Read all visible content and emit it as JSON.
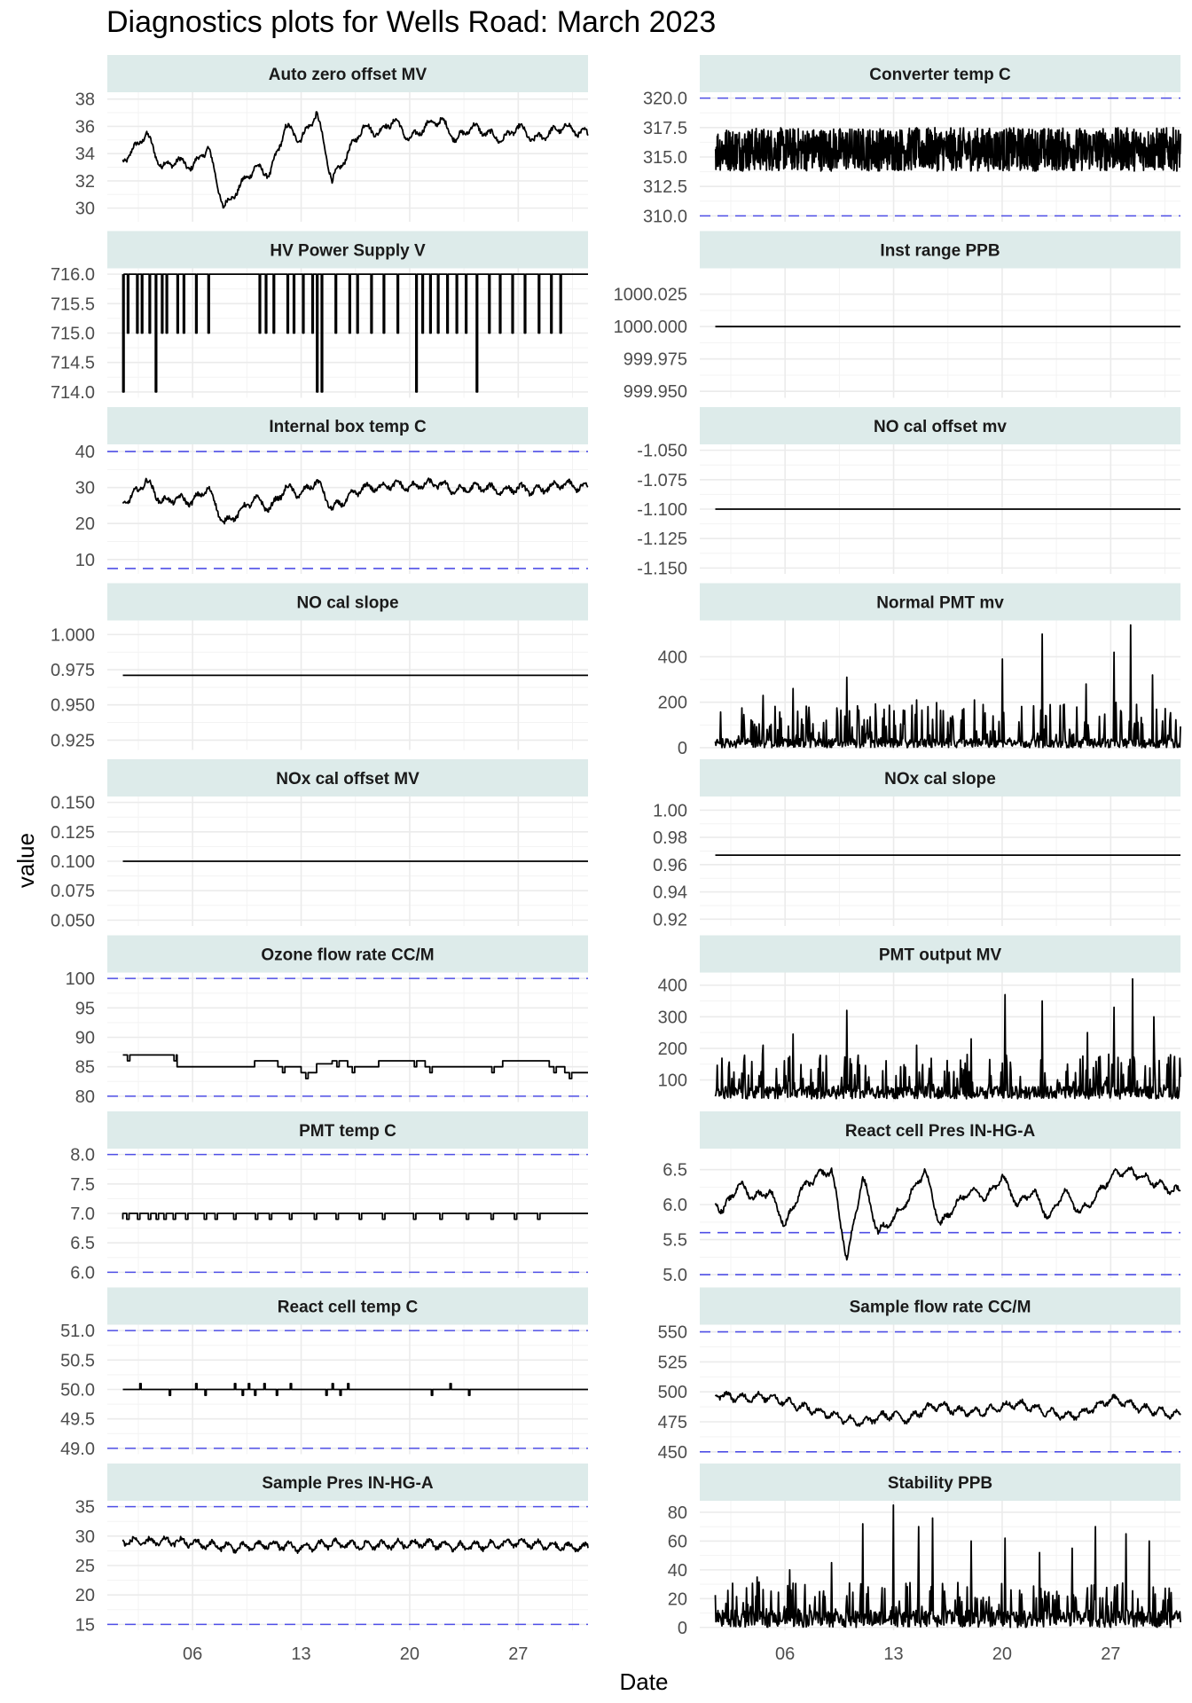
{
  "title": "Diagnostics plots for Wells Road: March 2023",
  "xlabel": "Date",
  "ylabel": "value",
  "x_tick_labels": [
    "06",
    "13",
    "20",
    "27"
  ],
  "colors": {
    "strip_bg": "#ddebea",
    "line": "#000000",
    "limit": "#4f4fe6",
    "grid": "#ebebeb"
  },
  "chart_data": [
    {
      "type": "line",
      "title": "Auto zero offset MV",
      "ylim": [
        29,
        38.5
      ],
      "yticks": [
        30,
        32,
        34,
        36,
        38
      ],
      "ytick_labels": [
        "30",
        "32",
        "34",
        "36",
        "38"
      ],
      "limits": [],
      "pattern": "wave",
      "x": [
        1,
        2,
        3,
        4,
        5,
        6,
        7,
        8,
        9,
        10,
        11,
        12,
        13,
        14,
        15,
        16,
        17,
        18,
        19,
        20,
        21,
        22,
        23,
        24,
        25,
        26,
        27,
        28,
        29,
        30,
        31
      ],
      "values": [
        33,
        34,
        35.5,
        33,
        33.5,
        33,
        34.5,
        30,
        31.5,
        33,
        32.5,
        36,
        35,
        37,
        32,
        34,
        36,
        35.5,
        36.5,
        35,
        36,
        36.5,
        35,
        36,
        35.5,
        35,
        36,
        35,
        35.5,
        36,
        35.5
      ]
    },
    {
      "type": "line",
      "title": "Converter temp C",
      "ylim": [
        309.5,
        320.5
      ],
      "yticks": [
        310,
        312.5,
        315,
        317.5,
        320
      ],
      "ytick_labels": [
        "310.0",
        "312.5",
        "315.0",
        "317.5",
        "320.0"
      ],
      "limits": [
        310,
        320
      ],
      "pattern": "band",
      "band": [
        313.8,
        317.5
      ]
    },
    {
      "type": "line",
      "title": "HV Power Supply V",
      "ylim": [
        713.9,
        716.1
      ],
      "yticks": [
        714,
        714.5,
        715,
        715.5,
        716
      ],
      "ytick_labels": [
        "714.0",
        "714.5",
        "715.0",
        "715.5",
        "716.0"
      ],
      "limits": [],
      "pattern": "step",
      "base": 716,
      "drops": [
        [
          1.5,
          714
        ],
        [
          1.8,
          715
        ],
        [
          2.4,
          715
        ],
        [
          2.7,
          715
        ],
        [
          3.2,
          715
        ],
        [
          3.6,
          714
        ],
        [
          4.0,
          715
        ],
        [
          4.3,
          715
        ],
        [
          5.0,
          715
        ],
        [
          5.4,
          715
        ],
        [
          6.2,
          715
        ],
        [
          7.0,
          715
        ],
        [
          10.3,
          715
        ],
        [
          10.7,
          715
        ],
        [
          11.2,
          715
        ],
        [
          12.1,
          715
        ],
        [
          12.5,
          715
        ],
        [
          13.1,
          715
        ],
        [
          13.7,
          715
        ],
        [
          14.0,
          714
        ],
        [
          14.3,
          714
        ],
        [
          15.2,
          715
        ],
        [
          16.1,
          715
        ],
        [
          16.6,
          715
        ],
        [
          17.5,
          715
        ],
        [
          18.3,
          715
        ],
        [
          19.2,
          715
        ],
        [
          20.4,
          714
        ],
        [
          20.8,
          715
        ],
        [
          21.3,
          715
        ],
        [
          21.8,
          715
        ],
        [
          22.4,
          715
        ],
        [
          23.0,
          715
        ],
        [
          23.6,
          715
        ],
        [
          24.3,
          714
        ],
        [
          25.1,
          715
        ],
        [
          25.8,
          715
        ],
        [
          26.6,
          715
        ],
        [
          27.4,
          715
        ],
        [
          28.3,
          715
        ],
        [
          29.1,
          715
        ],
        [
          29.7,
          715
        ]
      ]
    },
    {
      "type": "line",
      "title": "Inst range PPB",
      "ylim": [
        999.945,
        1000.045
      ],
      "yticks": [
        999.95,
        999.975,
        1000,
        1000.025
      ],
      "ytick_labels": [
        "999.950",
        "999.975",
        "1000.000",
        "1000.025"
      ],
      "limits": [],
      "pattern": "flat",
      "value": 1000
    },
    {
      "type": "line",
      "title": "Internal box temp C",
      "ylim": [
        6,
        42
      ],
      "yticks": [
        10,
        20,
        30,
        40
      ],
      "ytick_labels": [
        "10",
        "20",
        "30",
        "40"
      ],
      "limits": [
        7.5,
        40
      ],
      "pattern": "wave",
      "x": [
        1,
        2,
        3,
        4,
        5,
        6,
        7,
        8,
        9,
        10,
        11,
        12,
        13,
        14,
        15,
        16,
        17,
        18,
        19,
        20,
        21,
        22,
        23,
        24,
        25,
        26,
        27,
        28,
        29,
        30,
        31
      ],
      "values": [
        25,
        27,
        32,
        26,
        27,
        26,
        30,
        20,
        23,
        27,
        24,
        30,
        28,
        32,
        24,
        27,
        30,
        30,
        31,
        30,
        31,
        31,
        29,
        30,
        30,
        29,
        30,
        29,
        30,
        31,
        30
      ]
    },
    {
      "type": "line",
      "title": "NO cal offset mv",
      "ylim": [
        -1.155,
        -1.045
      ],
      "yticks": [
        -1.15,
        -1.125,
        -1.1,
        -1.075,
        -1.05
      ],
      "ytick_labels": [
        "-1.150",
        "-1.125",
        "-1.100",
        "-1.075",
        "-1.050"
      ],
      "limits": [],
      "pattern": "flat",
      "value": -1.1
    },
    {
      "type": "line",
      "title": "NO cal slope",
      "ylim": [
        0.918,
        1.01
      ],
      "yticks": [
        0.925,
        0.95,
        0.975,
        1
      ],
      "ytick_labels": [
        "0.925",
        "0.950",
        "0.975",
        "1.000"
      ],
      "limits": [],
      "pattern": "flat",
      "value": 0.971
    },
    {
      "type": "line",
      "title": "Normal PMT mv",
      "ylim": [
        -10,
        560
      ],
      "yticks": [
        0,
        200,
        400
      ],
      "ytick_labels": [
        "0",
        "200",
        "400"
      ],
      "limits": [],
      "pattern": "spikes",
      "spike_base": [
        0,
        40
      ],
      "peaks": [
        [
          4.6,
          230
        ],
        [
          6.5,
          260
        ],
        [
          10.0,
          310
        ],
        [
          14.5,
          210
        ],
        [
          18.2,
          210
        ],
        [
          20.0,
          390
        ],
        [
          22.6,
          500
        ],
        [
          25.4,
          280
        ],
        [
          27.2,
          420
        ],
        [
          28.3,
          540
        ],
        [
          29.7,
          320
        ]
      ]
    },
    {
      "type": "line",
      "title": "NOx cal offset MV",
      "ylim": [
        0.045,
        0.155
      ],
      "yticks": [
        0.05,
        0.075,
        0.1,
        0.125,
        0.15
      ],
      "ytick_labels": [
        "0.050",
        "0.075",
        "0.100",
        "0.125",
        "0.150"
      ],
      "limits": [],
      "pattern": "flat",
      "value": 0.1
    },
    {
      "type": "line",
      "title": "NOx cal slope",
      "ylim": [
        0.915,
        1.01
      ],
      "yticks": [
        0.92,
        0.94,
        0.96,
        0.98,
        1
      ],
      "ytick_labels": [
        "0.92",
        "0.94",
        "0.96",
        "0.98",
        "1.00"
      ],
      "limits": [],
      "pattern": "flat",
      "value": 0.967
    },
    {
      "type": "line",
      "title": "Ozone flow rate CC/M",
      "ylim": [
        79,
        101
      ],
      "yticks": [
        80,
        85,
        90,
        95,
        100
      ],
      "ytick_labels": [
        "80",
        "85",
        "90",
        "95",
        "100"
      ],
      "limits": [
        80,
        100
      ],
      "pattern": "steps",
      "x": [
        1,
        4.5,
        5,
        9,
        10,
        11.5,
        13,
        14,
        15,
        16,
        18,
        20,
        21,
        25,
        26,
        29,
        30,
        31
      ],
      "values": [
        87,
        87,
        85,
        85,
        86,
        85,
        84,
        85.5,
        86,
        85,
        86,
        86,
        85,
        85,
        86,
        85,
        84,
        84
      ]
    },
    {
      "type": "line",
      "title": "PMT output MV",
      "ylim": [
        30,
        440
      ],
      "yticks": [
        100,
        200,
        300,
        400
      ],
      "ytick_labels": [
        "100",
        "200",
        "300",
        "400"
      ],
      "limits": [],
      "pattern": "spikes",
      "spike_base": [
        40,
        80
      ],
      "peaks": [
        [
          4.6,
          210
        ],
        [
          6.5,
          245
        ],
        [
          10.0,
          320
        ],
        [
          14.5,
          210
        ],
        [
          18.0,
          230
        ],
        [
          20.2,
          370
        ],
        [
          22.6,
          350
        ],
        [
          25.5,
          250
        ],
        [
          27.2,
          330
        ],
        [
          28.4,
          420
        ],
        [
          29.8,
          300
        ]
      ]
    },
    {
      "type": "line",
      "title": "PMT temp C",
      "ylim": [
        5.9,
        8.1
      ],
      "yticks": [
        6,
        6.5,
        7,
        7.5,
        8
      ],
      "ytick_labels": [
        "6.0",
        "6.5",
        "7.0",
        "7.5",
        "8.0"
      ],
      "limits": [
        6,
        8
      ],
      "pattern": "pmt",
      "value": 7.0,
      "dip": 6.9
    },
    {
      "type": "line",
      "title": "React cell Pres IN-HG-A",
      "ylim": [
        4.95,
        6.8
      ],
      "yticks": [
        5,
        5.5,
        6,
        6.5
      ],
      "ytick_labels": [
        "5.0",
        "5.5",
        "6.0",
        "6.5"
      ],
      "limits": [
        5,
        5.6
      ],
      "pattern": "wave",
      "x": [
        1,
        2,
        3,
        4,
        5,
        6,
        7,
        8,
        9,
        10,
        11,
        12,
        13,
        14,
        15,
        16,
        17,
        18,
        19,
        20,
        21,
        22,
        23,
        24,
        25,
        26,
        27,
        28,
        29,
        30,
        31
      ],
      "values": [
        6.2,
        5.9,
        6.3,
        6.1,
        6.2,
        5.7,
        6.2,
        6.4,
        6.5,
        5.2,
        6.4,
        5.6,
        5.8,
        6.1,
        6.5,
        5.7,
        6.0,
        6.2,
        6.1,
        6.4,
        6.0,
        6.2,
        5.8,
        6.2,
        5.9,
        6.1,
        6.4,
        6.5,
        6.4,
        6.3,
        6.2
      ]
    },
    {
      "type": "line",
      "title": "React cell temp C",
      "ylim": [
        48.9,
        51.1
      ],
      "yticks": [
        49,
        49.5,
        50,
        50.5,
        51
      ],
      "ytick_labels": [
        "49.0",
        "49.5",
        "50.0",
        "50.5",
        "51.0"
      ],
      "limits": [
        49,
        51
      ],
      "pattern": "react",
      "value": 50.0
    },
    {
      "type": "line",
      "title": "Sample flow rate CC/M",
      "ylim": [
        448,
        556
      ],
      "yticks": [
        450,
        475,
        500,
        525,
        550
      ],
      "ytick_labels": [
        "450",
        "475",
        "500",
        "525",
        "550"
      ],
      "limits": [
        450,
        550
      ],
      "pattern": "wave",
      "x": [
        1,
        3,
        5,
        7,
        8,
        9,
        10,
        11,
        12,
        13,
        14,
        15,
        16,
        17,
        18,
        19,
        20,
        21,
        22,
        23,
        24,
        25,
        26,
        27,
        28,
        29,
        30,
        31
      ],
      "values": [
        499,
        495,
        496,
        488,
        484,
        481,
        477,
        474,
        479,
        481,
        477,
        486,
        489,
        484,
        483,
        484,
        488,
        490,
        487,
        483,
        480,
        481,
        487,
        494,
        491,
        486,
        484,
        481
      ]
    },
    {
      "type": "line",
      "title": "Sample Pres IN-HG-A",
      "ylim": [
        14,
        36
      ],
      "yticks": [
        15,
        20,
        25,
        30,
        35
      ],
      "ytick_labels": [
        "15",
        "20",
        "25",
        "30",
        "35"
      ],
      "limits": [
        15,
        35
      ],
      "pattern": "wave",
      "x": [
        1,
        3,
        5,
        7,
        9,
        11,
        13,
        15,
        17,
        19,
        21,
        23,
        25,
        27,
        29,
        31
      ],
      "values": [
        29.2,
        29,
        29.1,
        28.5,
        28,
        28.6,
        28,
        28.7,
        28.4,
        28.6,
        28.8,
        28.2,
        28.4,
        28.9,
        28.3,
        28.1
      ]
    },
    {
      "type": "line",
      "title": "Stability PPB",
      "ylim": [
        -2,
        88
      ],
      "yticks": [
        0,
        20,
        40,
        60,
        80
      ],
      "ytick_labels": [
        "0",
        "20",
        "40",
        "60",
        "80"
      ],
      "limits": [],
      "pattern": "spikes",
      "spike_base": [
        0,
        12
      ],
      "peaks": [
        [
          4.2,
          35
        ],
        [
          6.3,
          40
        ],
        [
          9.0,
          45
        ],
        [
          11.0,
          72
        ],
        [
          13.0,
          85
        ],
        [
          14.6,
          70
        ],
        [
          15.5,
          76
        ],
        [
          18.0,
          60
        ],
        [
          20.2,
          62
        ],
        [
          22.4,
          52
        ],
        [
          24.5,
          55
        ],
        [
          26.0,
          70
        ],
        [
          28.0,
          65
        ],
        [
          29.5,
          60
        ]
      ]
    }
  ]
}
